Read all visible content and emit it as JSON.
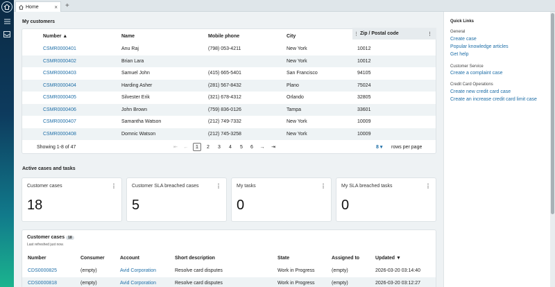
{
  "tab": {
    "label": "Home"
  },
  "customers": {
    "title": "My customers",
    "columns": [
      "Number",
      "Name",
      "Mobile phone",
      "City",
      "Zip / Postal code"
    ],
    "rows": [
      [
        "CSMR0000401",
        "Anu Raj",
        "(798) 053-4211",
        "New York",
        "10012"
      ],
      [
        "CSMR0000402",
        "Brian Lara",
        "",
        "New York",
        "10012"
      ],
      [
        "CSMR0000403",
        "Samuel John",
        "(415) 665-5401",
        "San Francisco",
        "94105"
      ],
      [
        "CSMR0000404",
        "Harding Asher",
        "(281) 567-8432",
        "Plano",
        "75024"
      ],
      [
        "CSMR0000405",
        "Silvester Erik",
        "(321) 678-4312",
        "Orlando",
        "32805"
      ],
      [
        "CSMR0000406",
        "John Brown",
        "(759) 836-0126",
        "Tampa",
        "33601"
      ],
      [
        "CSMR0000407",
        "Samantha Watson",
        "(212) 749-7332",
        "New York",
        "10009"
      ],
      [
        "CSMR0000408",
        "Domnic Watson",
        "(212) 745-3258",
        "New York",
        "10009"
      ]
    ],
    "showing": "Showing 1-8 of 47",
    "pages": [
      "1",
      "2",
      "3",
      "4",
      "5",
      "6"
    ],
    "current_page": "1",
    "rows_per_page": "8",
    "rows_per_page_label": "rows per page"
  },
  "active": {
    "title": "Active cases and tasks",
    "tiles": [
      {
        "label": "Customer cases",
        "value": "18"
      },
      {
        "label": "Customer SLA breached cases",
        "value": "5"
      },
      {
        "label": "My tasks",
        "value": "0"
      },
      {
        "label": "My SLA breached tasks",
        "value": "0"
      }
    ]
  },
  "cases": {
    "title": "Customer cases",
    "count": "18",
    "refreshed": "Last refreshed just now.",
    "columns": [
      "Number",
      "Consumer",
      "Account",
      "Short description",
      "State",
      "Assigned to",
      "Updated"
    ],
    "rows": [
      [
        "CDS0000825",
        "(empty)",
        "Avid Corporation",
        "Resolve card disputes",
        "Work in Progress",
        "(empty)",
        "2026-03-20 03:14:40"
      ],
      [
        "CDS0000818",
        "(empty)",
        "Avid Corporation",
        "Resolve card disputes",
        "Work in Progress",
        "(empty)",
        "2026-03-20 03:12:27"
      ]
    ]
  },
  "quick_links": {
    "title": "Quick Links",
    "groups": [
      {
        "name": "General",
        "links": [
          "Create case",
          "Popular knowledge articles",
          "Get help"
        ]
      },
      {
        "name": "Customer Service",
        "links": [
          "Create a complaint case"
        ]
      },
      {
        "name": "Credit Card Operations",
        "links": [
          "Create new credit card case",
          "Create an increase credit card limit case"
        ]
      }
    ]
  },
  "colors": {
    "link": "#1e6ea7",
    "rail_top": "#0b2a44",
    "rail_bottom": "#1bb48e"
  }
}
